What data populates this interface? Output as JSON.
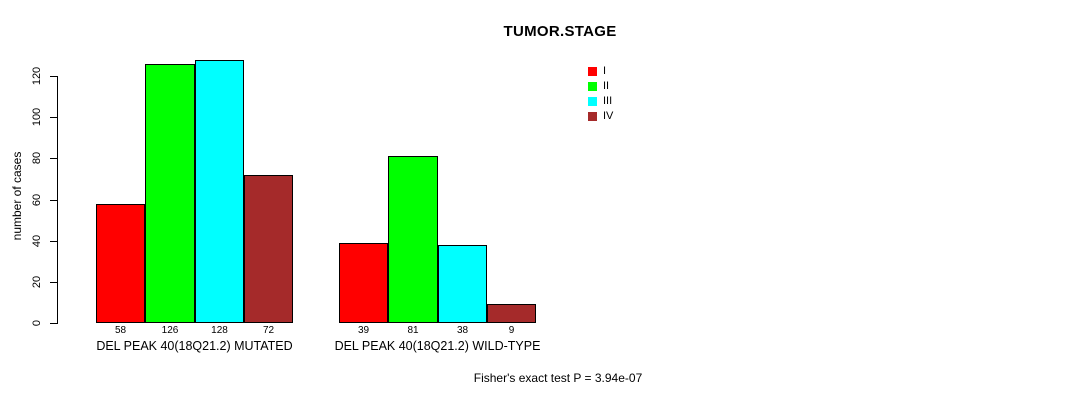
{
  "chart_data": {
    "type": "bar",
    "title": "TUMOR.STAGE",
    "ylabel": "number of cases",
    "xlabel": "",
    "ylim": [
      0,
      128
    ],
    "yticks": [
      0,
      20,
      40,
      60,
      80,
      100,
      120
    ],
    "grid": false,
    "legend_position": "top-right",
    "categories": [
      "DEL PEAK 40(18Q21.2) MUTATED",
      "DEL PEAK 40(18Q21.2) WILD-TYPE"
    ],
    "series": [
      {
        "name": "I",
        "color": "#ff0000",
        "values": [
          58,
          39
        ]
      },
      {
        "name": "II",
        "color": "#00ff00",
        "values": [
          126,
          81
        ]
      },
      {
        "name": "III",
        "color": "#00ffff",
        "values": [
          128,
          38
        ]
      },
      {
        "name": "IV",
        "color": "#a52a2a",
        "values": [
          72,
          9
        ]
      }
    ],
    "bar_value_labels": [
      [
        58,
        126,
        128,
        72
      ],
      [
        39,
        81,
        38,
        9
      ]
    ],
    "annotation": "Fisher's exact test P = 3.94e-07"
  }
}
